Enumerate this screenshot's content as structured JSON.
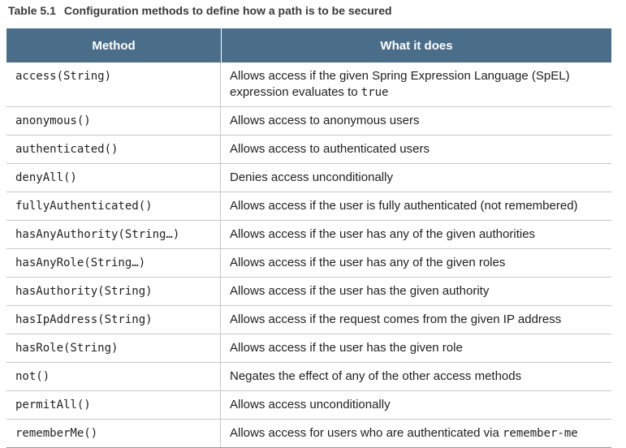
{
  "caption": {
    "number": "Table 5.1",
    "title": "Configuration methods to define how a path is to be secured"
  },
  "table": {
    "headers": [
      "Method",
      "What it does"
    ],
    "rows": [
      {
        "method": "access(String)",
        "desc": "Allows access if the given Spring Expression Language (SpEL)",
        "desc_line2": "expression evaluates to ",
        "desc_code": "true"
      },
      {
        "method": "anonymous()",
        "desc": "Allows access to anonymous users"
      },
      {
        "method": "authenticated()",
        "desc": "Allows access to authenticated users"
      },
      {
        "method": "denyAll()",
        "desc": "Denies access unconditionally"
      },
      {
        "method": "fullyAuthenticated()",
        "desc": "Allows access if the user is fully authenticated (not remembered)"
      },
      {
        "method": "hasAnyAuthority(String…)",
        "desc": "Allows access if the user has any of the given authorities"
      },
      {
        "method": "hasAnyRole(String…)",
        "desc": "Allows access if the user has any of the given roles"
      },
      {
        "method": "hasAuthority(String)",
        "desc": "Allows access if the user has the given authority"
      },
      {
        "method": "hasIpAddress(String)",
        "desc": "Allows access if the request comes from the given IP address"
      },
      {
        "method": "hasRole(String)",
        "desc": "Allows access if the user has the given role"
      },
      {
        "method": "not()",
        "desc": "Negates the effect of any of the other access methods"
      },
      {
        "method": "permitAll()",
        "desc": "Allows access unconditionally"
      },
      {
        "method": "rememberMe()",
        "desc": "Allows access for users who are authenticated via ",
        "desc_code": "remember-me"
      }
    ]
  },
  "colors": {
    "header_bg": "#4a6e8a",
    "header_text": "#ffffff",
    "row_divider": "#c8c8c8"
  }
}
